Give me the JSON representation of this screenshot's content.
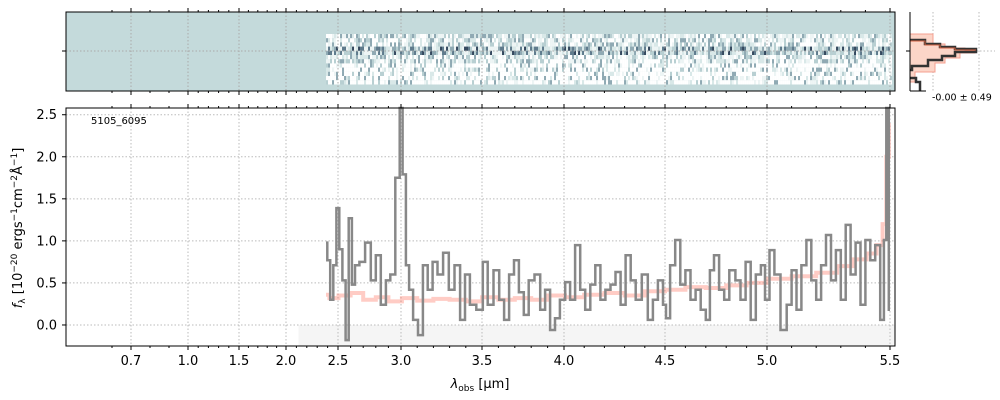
{
  "chart_data": {
    "type": "line",
    "object_label": "5105_6095",
    "xlabel": "λ_obs [μm]",
    "xlabel_main": "λ",
    "xlabel_sub": "obs",
    "xlabel_unit": " [μm]",
    "ylabel": "f_λ [10^-20 ergs^-1 cm^-2 Å^-1]",
    "ylabel_main": "f",
    "ylabel_sub": "λ",
    "ylabel_rest": " [10",
    "ylabel_exp1": "−20",
    "ylabel_mid": " ergs",
    "ylabel_exp2": "−1",
    "ylabel_mid2": "cm",
    "ylabel_exp3": "−2",
    "ylabel_mid3": "Å",
    "ylabel_exp4": "−1",
    "ylabel_end": "]",
    "xticks": [
      0.7,
      1.0,
      1.5,
      2.0,
      2.5,
      3.0,
      3.5,
      4.0,
      4.5,
      5.0,
      5.5
    ],
    "xtick_labels": [
      "0.7",
      "1.0",
      "1.5",
      "2.0",
      "2.5",
      "3.0",
      "3.5",
      "4.0",
      "4.5",
      "5.0",
      "5.5"
    ],
    "yticks": [
      0.0,
      0.5,
      1.0,
      1.5,
      2.0,
      2.5
    ],
    "ytick_labels": [
      "0.0",
      "0.5",
      "1.0",
      "1.5",
      "2.0",
      "2.5"
    ],
    "ylim": [
      -0.25,
      2.58
    ],
    "grid": true,
    "series": [
      {
        "name": "spectrum",
        "color": "#888888",
        "x": [
          2.385,
          2.41,
          2.44,
          2.47,
          2.5,
          2.52,
          2.55,
          2.57,
          2.6,
          2.62,
          2.65,
          2.69,
          2.74,
          2.78,
          2.82,
          2.86,
          2.9,
          2.93,
          2.98,
          3.0,
          3.02,
          3.04,
          3.06,
          3.09,
          3.12,
          3.15,
          3.18,
          3.21,
          3.24,
          3.28,
          3.31,
          3.35,
          3.38,
          3.41,
          3.44,
          3.49,
          3.52,
          3.55,
          3.59,
          3.62,
          3.65,
          3.68,
          3.71,
          3.74,
          3.77,
          3.8,
          3.84,
          3.87,
          3.9,
          3.93,
          3.96,
          3.99,
          4.02,
          4.04,
          4.07,
          4.09,
          4.12,
          4.14,
          4.17,
          4.19,
          4.22,
          4.24,
          4.27,
          4.29,
          4.32,
          4.34,
          4.37,
          4.4,
          4.43,
          4.45,
          4.48,
          4.5,
          4.51,
          4.54,
          4.56,
          4.59,
          4.61,
          4.64,
          4.66,
          4.69,
          4.71,
          4.73,
          4.75,
          4.78,
          4.8,
          4.83,
          4.86,
          4.88,
          4.91,
          4.93,
          4.96,
          4.98,
          5.0,
          5.02,
          5.04,
          5.07,
          5.09,
          5.11,
          5.13,
          5.15,
          5.17,
          5.19,
          5.21,
          5.23,
          5.25,
          5.27,
          5.29,
          5.31,
          5.33,
          5.35,
          5.37,
          5.39,
          5.41,
          5.43,
          5.45,
          5.47,
          5.48,
          5.49,
          5.5
        ],
        "y": [
          0.98,
          0.77,
          0.3,
          0.71,
          1.39,
          0.9,
          0.53,
          -0.18,
          1.27,
          0.48,
          0.71,
          0.75,
          0.98,
          0.53,
          0.83,
          0.24,
          0.53,
          0.6,
          1.75,
          2.58,
          1.79,
          0.71,
          0.42,
          0.06,
          -0.12,
          0.71,
          0.42,
          0.75,
          0.6,
          0.86,
          0.42,
          0.71,
          0.06,
          0.6,
          0.24,
          0.18,
          0.75,
          0.24,
          0.65,
          0.3,
          0.06,
          0.6,
          0.77,
          0.39,
          0.12,
          0.53,
          0.6,
          0.18,
          0.42,
          -0.06,
          0.08,
          0.3,
          0.51,
          0.3,
          0.95,
          0.42,
          0.18,
          0.48,
          0.71,
          0.3,
          0.42,
          0.48,
          0.63,
          0.24,
          0.83,
          0.53,
          0.3,
          0.6,
          0.06,
          0.3,
          0.53,
          0.24,
          0.08,
          0.71,
          1.01,
          0.48,
          0.65,
          0.3,
          0.42,
          0.18,
          0.06,
          0.65,
          0.83,
          0.42,
          0.3,
          0.65,
          0.53,
          0.3,
          0.75,
          0.06,
          0.6,
          0.71,
          0.3,
          0.89,
          0.6,
          -0.06,
          0.24,
          0.65,
          0.18,
          0.71,
          1.01,
          0.53,
          0.3,
          0.71,
          1.07,
          0.53,
          0.89,
          0.3,
          1.19,
          0.6,
          0.98,
          0.24,
          1.01,
          0.77,
          0.95,
          0.06,
          1.01,
          2.58,
          0.18
        ]
      },
      {
        "name": "model",
        "color": "#ff6a55",
        "x": [
          2.385,
          2.45,
          2.55,
          2.65,
          2.75,
          2.85,
          2.95,
          3.05,
          3.15,
          3.25,
          3.35,
          3.45,
          3.55,
          3.65,
          3.75,
          3.85,
          3.95,
          4.05,
          4.15,
          4.25,
          4.35,
          4.45,
          4.55,
          4.65,
          4.75,
          4.85,
          4.95,
          5.05,
          5.15,
          5.25,
          5.32,
          5.38,
          5.43,
          5.46,
          5.48,
          5.49,
          5.5
        ],
        "y": [
          0.36,
          0.32,
          0.35,
          0.38,
          0.3,
          0.33,
          0.28,
          0.32,
          0.29,
          0.31,
          0.3,
          0.28,
          0.33,
          0.3,
          0.32,
          0.3,
          0.35,
          0.33,
          0.36,
          0.38,
          0.35,
          0.4,
          0.42,
          0.45,
          0.44,
          0.47,
          0.5,
          0.55,
          0.58,
          0.62,
          0.7,
          0.78,
          0.85,
          0.95,
          1.2,
          2.0,
          2.4
        ]
      }
    ],
    "masked_region_start": 2.12,
    "histogram_panel": {
      "label": "-0.00 ± 0.49"
    }
  }
}
